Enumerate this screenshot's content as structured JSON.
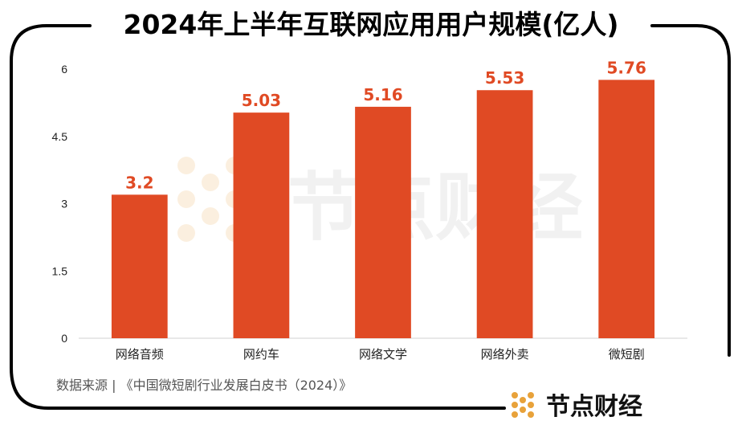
{
  "chart_data": {
    "type": "bar",
    "title": "2024年上半年互联网应用用户规模(亿人)",
    "categories": [
      "网络音频",
      "网约车",
      "网络文学",
      "网络外卖",
      "微短剧"
    ],
    "values": [
      3.2,
      5.03,
      5.16,
      5.53,
      5.76
    ],
    "data_labels": [
      "3.2",
      "5.03",
      "5.16",
      "5.53",
      "5.76"
    ],
    "y_ticks": [
      "0",
      "1.5",
      "3",
      "4.5",
      "6"
    ],
    "y_tick_values": [
      0,
      1.5,
      3,
      4.5,
      6
    ],
    "ylim": [
      0,
      6
    ],
    "xlabel": "",
    "ylabel": "",
    "grid": false,
    "legend": "none",
    "bar_color": "#e04a24",
    "label_color": "#e04a24"
  },
  "footer": {
    "source": "数据来源 | 《中国微短剧行业发展白皮书（2024）》",
    "brand": "节点财经"
  },
  "watermark": "节点财经",
  "colors": {
    "frame": "#000000",
    "logo": "#e8a23a",
    "watermark": "#f0f0f0"
  }
}
